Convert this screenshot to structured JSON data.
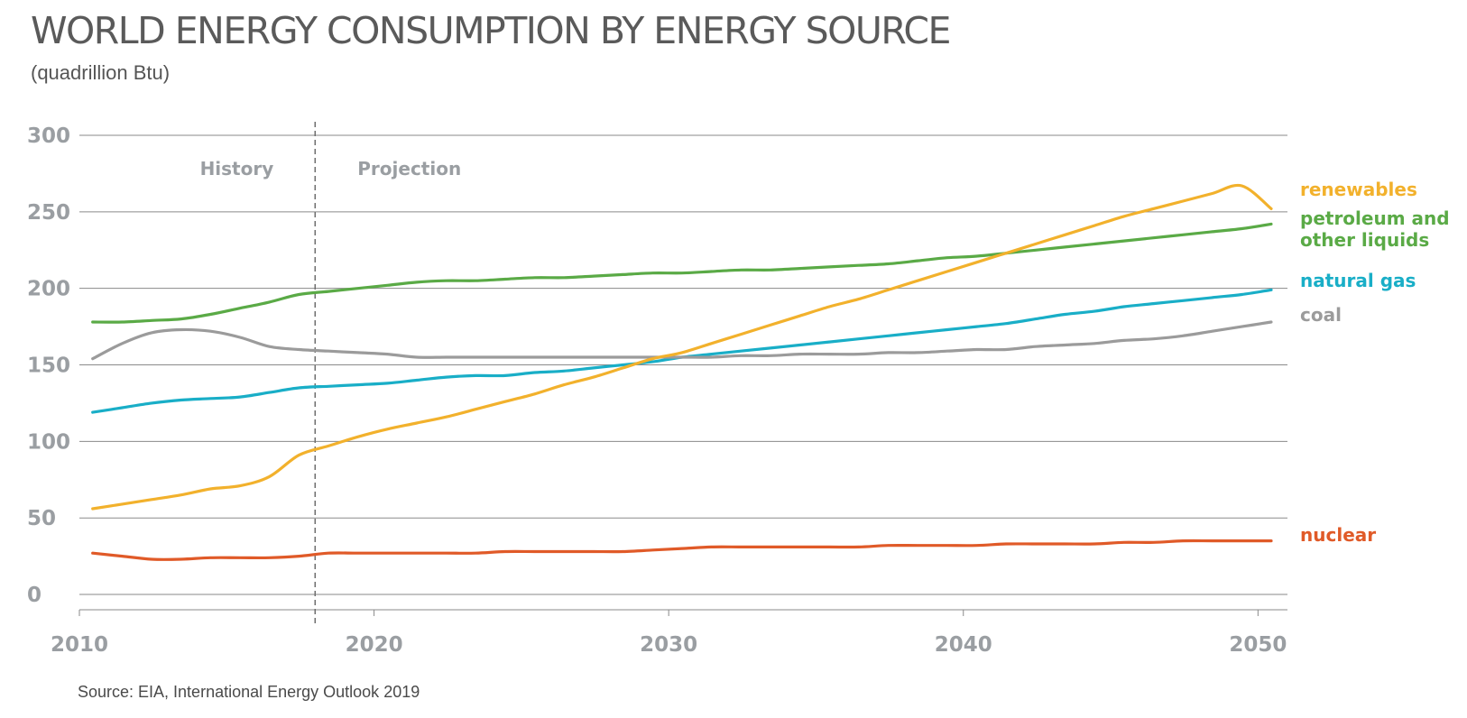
{
  "chart_data": {
    "type": "line",
    "title": "WORLD ENERGY CONSUMPTION BY ENERGY SOURCE",
    "subtitle": "(quadrillion Btu)",
    "source": "Source: EIA, International Energy Outlook 2019",
    "x": [
      2010,
      2011,
      2012,
      2013,
      2014,
      2015,
      2016,
      2017,
      2018,
      2019,
      2020,
      2021,
      2022,
      2023,
      2024,
      2025,
      2026,
      2027,
      2028,
      2029,
      2030,
      2031,
      2032,
      2033,
      2034,
      2035,
      2036,
      2037,
      2038,
      2039,
      2040,
      2041,
      2042,
      2043,
      2044,
      2045,
      2046,
      2047,
      2048,
      2049,
      2050
    ],
    "xlim": [
      2010,
      2051
    ],
    "ylim": [
      -10,
      300
    ],
    "x_ticks": [
      "2010",
      "2020",
      "2030",
      "2040",
      "2050"
    ],
    "y_ticks": [
      "0",
      "50",
      "100",
      "150",
      "200",
      "250",
      "300"
    ],
    "grid": "horizontal",
    "divider_year": 2018,
    "phases": {
      "history": "History",
      "projection": "Projection"
    },
    "series": [
      {
        "name": "petroleum and other liquids",
        "label_lines": [
          "petroleum and",
          "other liquids"
        ],
        "color": "#5aaa46",
        "values": [
          178,
          178,
          179,
          180,
          183,
          187,
          191,
          196,
          198,
          200,
          202,
          204,
          205,
          205,
          206,
          207,
          207,
          208,
          209,
          210,
          210,
          211,
          212,
          212,
          213,
          214,
          215,
          216,
          218,
          220,
          221,
          223,
          225,
          227,
          229,
          231,
          233,
          235,
          237,
          239,
          242
        ]
      },
      {
        "name": "renewables",
        "label_lines": [
          "renewables"
        ],
        "color": "#f2b12c",
        "values": [
          56,
          59,
          62,
          65,
          69,
          71,
          77,
          91,
          97,
          103,
          108,
          112,
          116,
          121,
          126,
          131,
          137,
          142,
          148,
          154,
          158,
          164,
          170,
          176,
          182,
          188,
          193,
          199,
          205,
          211,
          217,
          223,
          229,
          235,
          241,
          247,
          252,
          257,
          262,
          267,
          252
        ]
      },
      {
        "name": "natural gas",
        "label_lines": [
          "natural gas"
        ],
        "color": "#19aec7",
        "values": [
          119,
          122,
          125,
          127,
          128,
          129,
          132,
          135,
          136,
          137,
          138,
          140,
          142,
          143,
          143,
          145,
          146,
          148,
          150,
          152,
          155,
          157,
          159,
          161,
          163,
          165,
          167,
          169,
          171,
          173,
          175,
          177,
          180,
          183,
          185,
          188,
          190,
          192,
          194,
          196,
          199
        ]
      },
      {
        "name": "coal",
        "label_lines": [
          "coal"
        ],
        "color": "#9b9b9b",
        "values": [
          154,
          164,
          171,
          173,
          172,
          168,
          162,
          160,
          159,
          158,
          157,
          155,
          155,
          155,
          155,
          155,
          155,
          155,
          155,
          155,
          155,
          155,
          156,
          156,
          157,
          157,
          157,
          158,
          158,
          159,
          160,
          160,
          162,
          163,
          164,
          166,
          167,
          169,
          172,
          175,
          178
        ]
      },
      {
        "name": "nuclear",
        "label_lines": [
          "nuclear"
        ],
        "color": "#e05a28",
        "values": [
          27,
          25,
          23,
          23,
          24,
          24,
          24,
          25,
          27,
          27,
          27,
          27,
          27,
          27,
          28,
          28,
          28,
          28,
          28,
          29,
          30,
          31,
          31,
          31,
          31,
          31,
          31,
          32,
          32,
          32,
          32,
          33,
          33,
          33,
          33,
          34,
          34,
          35,
          35,
          35,
          35
        ]
      }
    ]
  }
}
